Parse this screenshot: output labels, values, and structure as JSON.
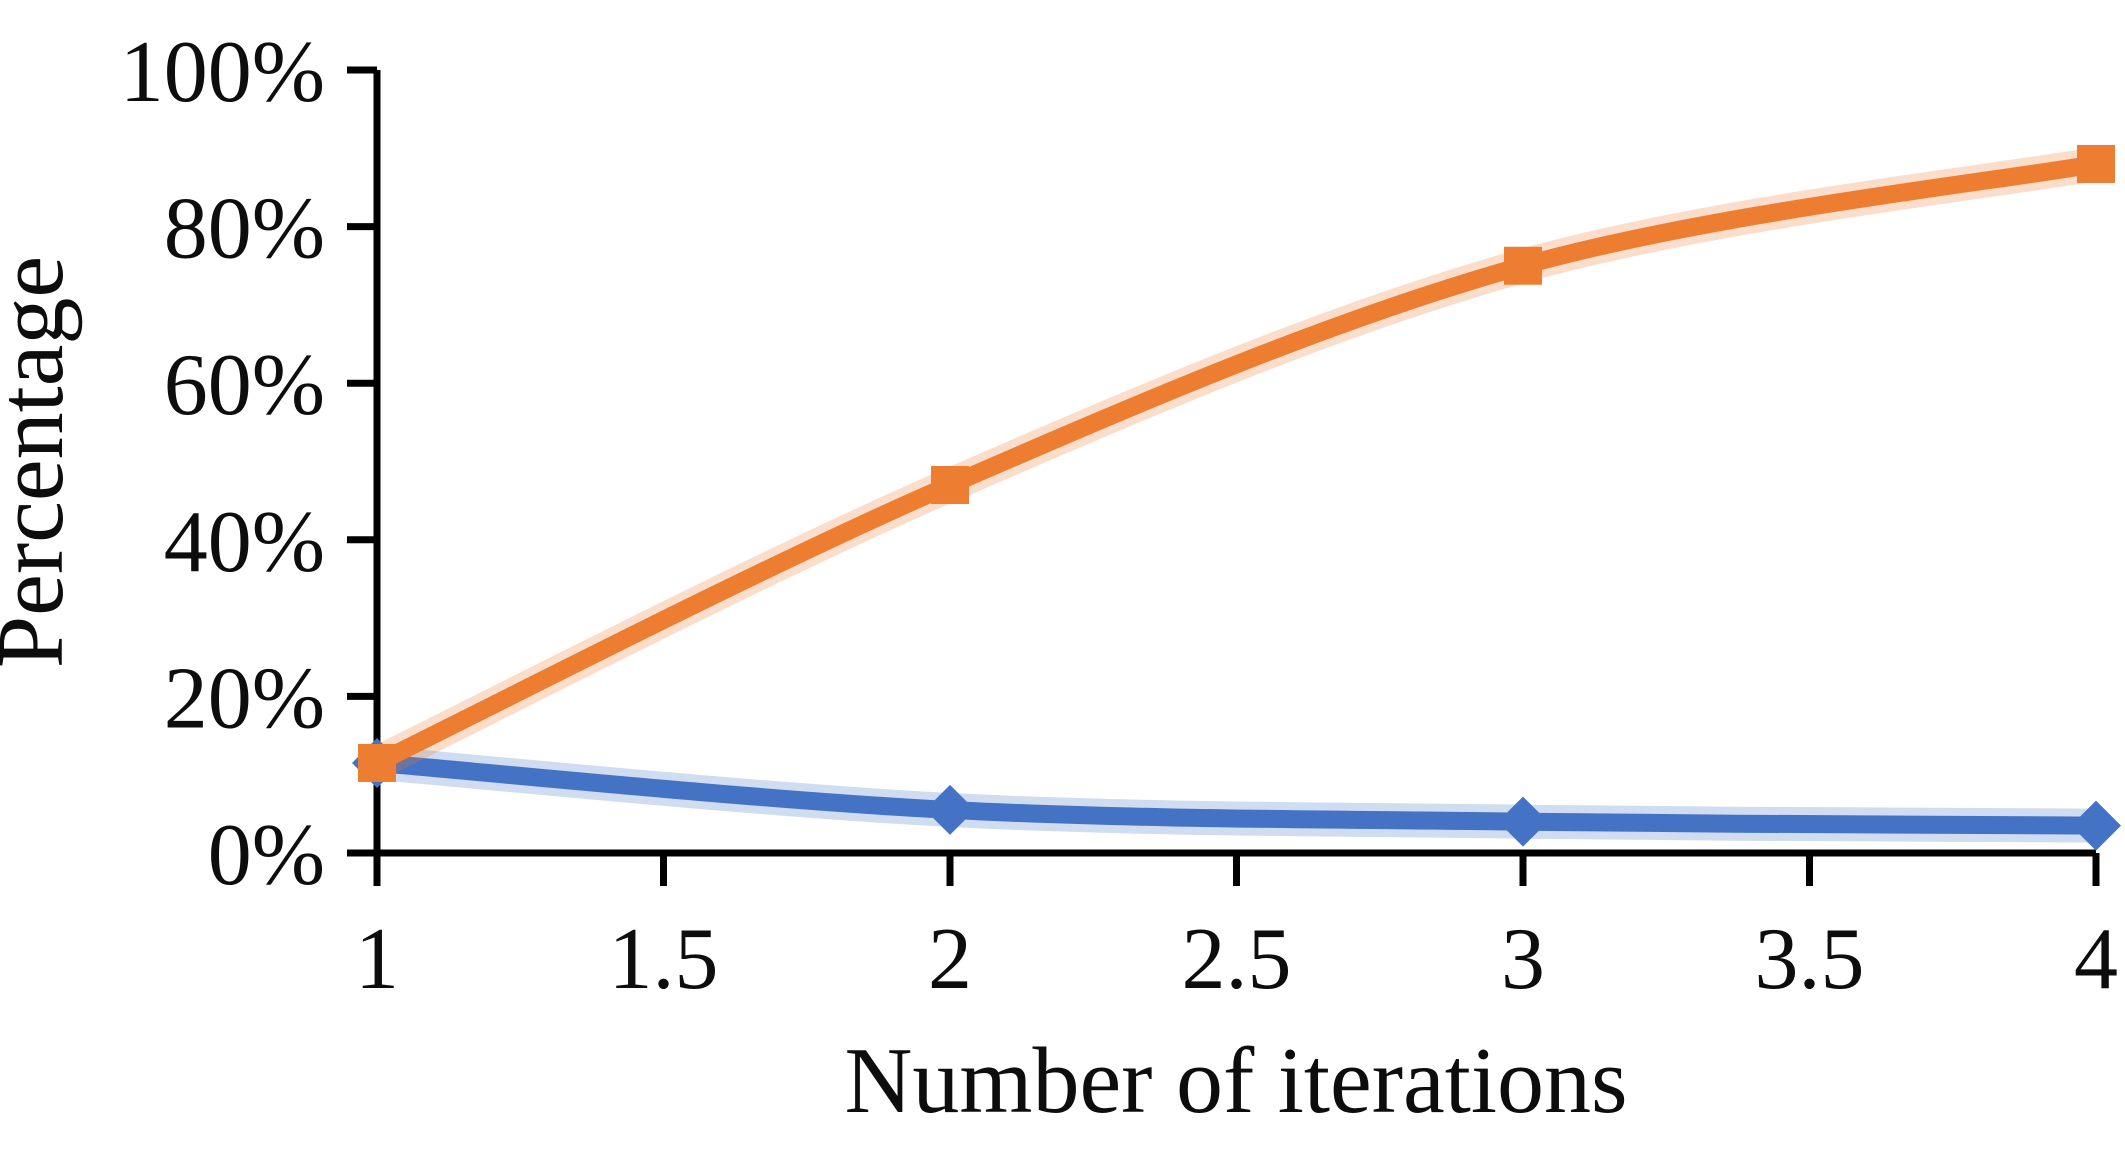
{
  "chart_data": {
    "type": "line",
    "title": "",
    "xlabel": "Number of iterations",
    "ylabel": "Percentage",
    "x": [
      1,
      2,
      3,
      4
    ],
    "series": [
      {
        "name": "blue-diamond-series",
        "marker": "diamond",
        "color": "#4472C4",
        "values": [
          11.5,
          5.5,
          4,
          3.5
        ]
      },
      {
        "name": "orange-square-series",
        "marker": "square",
        "color": "#ED7D31",
        "values": [
          11.5,
          47,
          75,
          88
        ]
      }
    ],
    "x_axis": {
      "range": [
        1,
        4
      ],
      "ticks": [
        1,
        1.5,
        2,
        2.5,
        3,
        3.5,
        4
      ],
      "labels": [
        "1",
        "1.5",
        "2",
        "2.5",
        "3",
        "3.5",
        "4"
      ]
    },
    "y_axis": {
      "range": [
        0,
        100
      ],
      "ticks": [
        0,
        20,
        40,
        60,
        80,
        100
      ],
      "labels": [
        "0%",
        "20%",
        "40%",
        "60%",
        "80%",
        "100%"
      ]
    },
    "grid": false,
    "legend": "none",
    "axis_color": "#000000"
  }
}
